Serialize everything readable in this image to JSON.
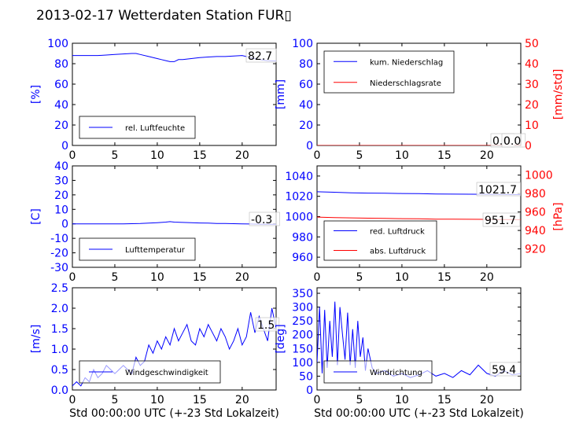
{
  "title": "2013-02-17 Wetterdaten Station FUR▯",
  "colors": {
    "primary": "#0000ff",
    "secondary": "#ff0000",
    "text": "#000000"
  },
  "chart_data": [
    {
      "id": "humidity",
      "type": "line",
      "xlabel": "",
      "ylabel": "[%]",
      "xlim": [
        0,
        24
      ],
      "ylim": [
        0,
        100
      ],
      "x_ticks": [
        0,
        5,
        10,
        15,
        20
      ],
      "y_ticks": [
        0,
        20,
        40,
        60,
        80,
        100
      ],
      "legend": {
        "position": "lower-left",
        "entries": [
          {
            "name": "rel. Luftfeuchte",
            "color": "#0000ff"
          }
        ]
      },
      "last_value_label": "82.7",
      "series": [
        {
          "name": "rel. Luftfeuchte",
          "color": "#0000ff",
          "axis": "left",
          "x": [
            0,
            1,
            2,
            3,
            4,
            5,
            6,
            7,
            7.5,
            8,
            9,
            10,
            10.5,
            11,
            11.5,
            12,
            12.5,
            13,
            14,
            15,
            16,
            17,
            18,
            19,
            20,
            21,
            22,
            23,
            24
          ],
          "y": [
            88,
            88,
            88,
            88,
            88.5,
            89,
            89.5,
            90,
            90,
            89,
            87,
            85,
            84,
            83,
            82,
            82,
            84,
            84,
            85,
            86,
            86.5,
            87,
            87,
            87.5,
            88,
            86,
            84,
            83,
            82.7
          ]
        }
      ]
    },
    {
      "id": "precipitation",
      "type": "line",
      "xlabel": "",
      "ylabel": "[mm]",
      "ylabel_right": "[mm/std]",
      "xlim": [
        0,
        24
      ],
      "ylim": [
        0,
        100
      ],
      "ylim_right": [
        0,
        50
      ],
      "x_ticks": [
        0,
        5,
        10,
        15,
        20
      ],
      "y_ticks": [
        0,
        20,
        40,
        60,
        80,
        100
      ],
      "y_ticks_right": [
        0,
        10,
        20,
        30,
        40,
        50
      ],
      "legend": {
        "position": "upper-left",
        "entries": [
          {
            "name": "kum. Niederschlag",
            "color": "#0000ff"
          },
          {
            "name": "Niederschlagsrate",
            "color": "#ff0000"
          }
        ]
      },
      "last_value_labels": [
        "0.0",
        "0.0"
      ],
      "series": [
        {
          "name": "kum. Niederschlag",
          "color": "#0000ff",
          "axis": "left",
          "x": [
            0,
            24
          ],
          "y": [
            0,
            0
          ]
        },
        {
          "name": "Niederschlagsrate",
          "color": "#ff0000",
          "axis": "right",
          "x": [
            0,
            24
          ],
          "y": [
            0,
            0
          ]
        }
      ]
    },
    {
      "id": "temperature",
      "type": "line",
      "xlabel": "",
      "ylabel": "[C]",
      "xlim": [
        0,
        24
      ],
      "ylim": [
        -30,
        40
      ],
      "x_ticks": [
        0,
        5,
        10,
        15,
        20
      ],
      "y_ticks": [
        -30,
        -20,
        -10,
        0,
        10,
        20,
        30,
        40
      ],
      "legend": {
        "position": "lower-left",
        "entries": [
          {
            "name": "Lufttemperatur",
            "color": "#0000ff"
          }
        ]
      },
      "last_value_label": "-0.3",
      "series": [
        {
          "name": "Lufttemperatur",
          "color": "#0000ff",
          "axis": "left",
          "x": [
            0,
            2,
            4,
            6,
            8,
            9,
            10,
            11,
            11.5,
            12,
            13,
            14,
            15,
            16,
            17,
            18,
            19,
            20,
            21,
            22,
            23,
            24
          ],
          "y": [
            0,
            0,
            0,
            0,
            0.2,
            0.5,
            0.8,
            1.2,
            1.5,
            1.2,
            1.0,
            0.8,
            0.6,
            0.5,
            0.3,
            0.2,
            0.1,
            0,
            -0.1,
            -0.2,
            -0.3,
            -0.3
          ]
        }
      ]
    },
    {
      "id": "pressure",
      "type": "line",
      "xlabel": "",
      "ylabel": "",
      "ylabel_right": "[hPa]",
      "xlim": [
        0,
        24
      ],
      "ylim": [
        950,
        1050
      ],
      "ylim_right": [
        900,
        1010
      ],
      "x_ticks": [
        0,
        5,
        10,
        15,
        20
      ],
      "y_ticks": [
        960,
        980,
        1000,
        1020,
        1040
      ],
      "y_ticks_right": [
        920,
        940,
        960,
        980,
        1000
      ],
      "legend": {
        "position": "lower-left",
        "entries": [
          {
            "name": "red. Luftdruck",
            "color": "#0000ff"
          },
          {
            "name": "abs. Luftdruck",
            "color": "#ff0000"
          }
        ]
      },
      "last_value_labels": [
        "1021.7",
        "951.7"
      ],
      "series": [
        {
          "name": "red. Luftdruck",
          "color": "#0000ff",
          "axis": "left",
          "x": [
            0,
            2,
            4,
            6,
            8,
            10,
            12,
            14,
            16,
            18,
            20,
            22,
            24
          ],
          "y": [
            1024.5,
            1024,
            1023.5,
            1023.2,
            1023,
            1022.8,
            1022.6,
            1022.3,
            1022.2,
            1022.1,
            1022,
            1021.8,
            1021.7
          ]
        },
        {
          "name": "abs. Luftdruck",
          "color": "#ff0000",
          "axis": "right",
          "x": [
            0,
            2,
            4,
            6,
            8,
            10,
            12,
            14,
            16,
            18,
            20,
            22,
            24
          ],
          "y": [
            954.5,
            954,
            953.6,
            953.3,
            953,
            952.8,
            952.6,
            952.3,
            952.2,
            952.1,
            952,
            951.8,
            951.7
          ]
        }
      ]
    },
    {
      "id": "wind-speed",
      "type": "line",
      "xlabel": "Std 00:00:00 UTC (+-23 Std Lokalzeit)",
      "ylabel": "[m/s]",
      "xlim": [
        0,
        24
      ],
      "ylim": [
        0,
        2.5
      ],
      "x_ticks": [
        0,
        5,
        10,
        15,
        20
      ],
      "y_ticks": [
        0.0,
        0.5,
        1.0,
        1.5,
        2.0,
        2.5
      ],
      "legend": {
        "position": "lower-left",
        "entries": [
          {
            "name": "Windgeschwindigkeit",
            "color": "#0000ff"
          }
        ]
      },
      "last_value_label": "1.5",
      "series": [
        {
          "name": "Windgeschwindigkeit",
          "color": "#0000ff",
          "axis": "left",
          "x": [
            0,
            0.5,
            1,
            1.5,
            2,
            2.5,
            3,
            3.5,
            4,
            4.5,
            5,
            5.5,
            6,
            6.5,
            7,
            7.5,
            8,
            8.5,
            9,
            9.5,
            10,
            10.5,
            11,
            11.5,
            12,
            12.5,
            13,
            13.5,
            14,
            14.5,
            15,
            15.5,
            16,
            16.5,
            17,
            17.5,
            18,
            18.5,
            19,
            19.5,
            20,
            20.5,
            21,
            21.5,
            22,
            22.5,
            23,
            23.5,
            24
          ],
          "y": [
            0.1,
            0.2,
            0.1,
            0.3,
            0.2,
            0.5,
            0.3,
            0.4,
            0.6,
            0.5,
            0.4,
            0.5,
            0.6,
            0.5,
            0.4,
            0.8,
            0.6,
            0.7,
            1.1,
            0.9,
            1.2,
            1.0,
            1.3,
            1.1,
            1.5,
            1.2,
            1.4,
            1.6,
            1.2,
            1.1,
            1.5,
            1.3,
            1.6,
            1.4,
            1.2,
            1.5,
            1.3,
            1.0,
            1.2,
            1.5,
            1.1,
            1.3,
            1.9,
            1.4,
            1.8,
            1.5,
            1.2,
            2.0,
            1.5
          ]
        }
      ]
    },
    {
      "id": "wind-direction",
      "type": "line",
      "xlabel": "Std 00:00:00 UTC (+-23 Std Lokalzeit)",
      "ylabel": "[deg]",
      "xlim": [
        0,
        24
      ],
      "ylim": [
        0,
        370
      ],
      "x_ticks": [
        0,
        5,
        10,
        15,
        20
      ],
      "y_ticks": [
        0,
        50,
        100,
        150,
        200,
        250,
        300,
        350
      ],
      "legend": {
        "position": "lower-left",
        "entries": [
          {
            "name": "Windrichtung",
            "color": "#0000ff"
          }
        ]
      },
      "last_value_label": "59.4",
      "series": [
        {
          "name": "Windrichtung",
          "color": "#0000ff",
          "axis": "left",
          "x": [
            0,
            0.3,
            0.6,
            0.9,
            1.2,
            1.5,
            1.8,
            2.1,
            2.4,
            2.7,
            3.0,
            3.3,
            3.6,
            3.9,
            4.2,
            4.5,
            4.8,
            5.1,
            5.4,
            5.7,
            6.0,
            6.5,
            7,
            8,
            9,
            10,
            11,
            12,
            13,
            14,
            15,
            16,
            17,
            18,
            19,
            20,
            21,
            22,
            23,
            24
          ],
          "y": [
            100,
            300,
            60,
            290,
            80,
            250,
            120,
            320,
            90,
            300,
            200,
            110,
            280,
            90,
            220,
            80,
            250,
            120,
            190,
            70,
            150,
            80,
            60,
            70,
            50,
            60,
            45,
            55,
            70,
            50,
            60,
            45,
            70,
            55,
            90,
            60,
            50,
            70,
            55,
            59.4
          ]
        }
      ]
    }
  ]
}
